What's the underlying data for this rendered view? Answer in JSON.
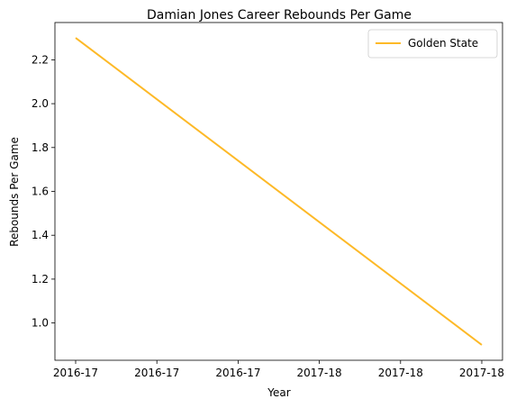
{
  "chart_data": {
    "type": "line",
    "title": "Damian Jones  Career Rebounds Per Game",
    "xlabel": "Year",
    "ylabel": "Rebounds Per Game",
    "x_tick_labels": [
      "2016-17",
      "2016-17",
      "2016-17",
      "2017-18",
      "2017-18",
      "2017-18"
    ],
    "x": [
      "2016-17",
      "2017-18"
    ],
    "y_ticks": [
      1.0,
      1.2,
      1.4,
      1.6,
      1.8,
      2.0,
      2.2
    ],
    "y_tick_labels": [
      "1.0",
      "1.2",
      "1.4",
      "1.6",
      "1.8",
      "2.0",
      "2.2"
    ],
    "ylim": [
      0.83,
      2.37
    ],
    "grid": false,
    "legend_position": "top-right",
    "series": [
      {
        "name": "Golden State",
        "color": "#FDB927",
        "values": [
          2.3,
          0.9
        ]
      }
    ]
  }
}
